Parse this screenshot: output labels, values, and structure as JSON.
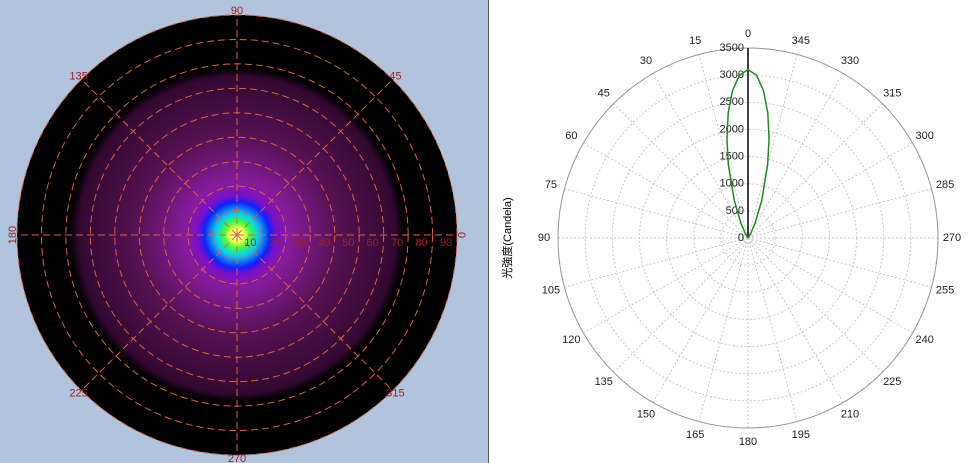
{
  "chart_data": [
    {
      "type": "polar-map",
      "angle_ticks": [
        0,
        45,
        90,
        135,
        180,
        225,
        270,
        315
      ],
      "radial_ticks": [
        10,
        20,
        30,
        40,
        50,
        60,
        70,
        80,
        90
      ],
      "rlim": [
        0,
        90
      ]
    },
    {
      "type": "polar",
      "y_label": "光強度(Candela)",
      "ylim": [
        0,
        3500
      ],
      "yticks": [
        0,
        500,
        1000,
        1500,
        2000,
        2500,
        3000,
        3500
      ],
      "xticks": [
        0,
        15,
        30,
        45,
        60,
        75,
        90,
        105,
        120,
        135,
        150,
        165,
        180,
        195,
        210,
        225,
        240,
        255,
        270,
        285,
        300,
        315,
        330,
        345
      ],
      "grid": true,
      "series": [
        {
          "color": "#1f8a1f",
          "x": [
            320,
            330,
            335,
            340,
            345,
            348,
            351,
            354,
            357,
            0,
            3,
            6,
            9,
            12,
            15,
            20,
            25,
            30,
            40
          ],
          "values": [
            5,
            113,
            323,
            741,
            1397,
            1866,
            2332,
            2731,
            3004,
            3100,
            3004,
            2731,
            2332,
            1866,
            1397,
            741,
            323,
            113,
            5
          ]
        }
      ]
    }
  ]
}
